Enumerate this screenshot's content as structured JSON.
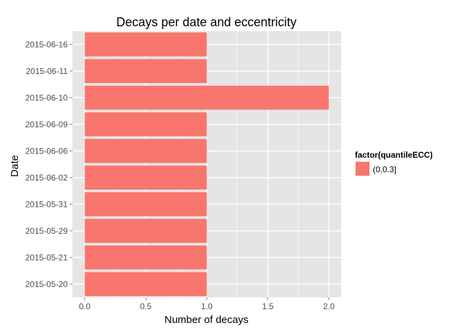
{
  "chart_data": {
    "type": "bar",
    "orientation": "horizontal",
    "title": "Decays per date and eccentricity",
    "xlabel": "Number of decays",
    "ylabel": "Date",
    "categories": [
      "2015-06-16",
      "2015-06-11",
      "2015-06-10",
      "2015-06-09",
      "2015-06-06",
      "2015-06-02",
      "2015-05-31",
      "2015-05-29",
      "2015-05-21",
      "2015-05-20"
    ],
    "series": [
      {
        "name": "(0,0.3]",
        "values": [
          1,
          1,
          2,
          1,
          1,
          1,
          1,
          1,
          1,
          1
        ],
        "color": "#f8766d"
      }
    ],
    "xlim": [
      -0.1,
      2.1
    ],
    "xticks": [
      0.0,
      0.5,
      1.0,
      1.5,
      2.0
    ],
    "xtick_labels": [
      "0.0",
      "0.5",
      "1.0",
      "1.5",
      "2.0"
    ],
    "grid": true,
    "legend": {
      "title": "factor(quantileECC)",
      "position": "right"
    },
    "panel_background": "#e5e5e5",
    "grid_color": "#ffffff"
  }
}
